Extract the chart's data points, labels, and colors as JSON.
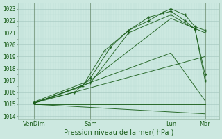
{
  "xlabel": "Pression niveau de la mer( hPa )",
  "ylim": [
    1013.8,
    1023.5
  ],
  "yticks": [
    1014,
    1015,
    1016,
    1017,
    1018,
    1019,
    1020,
    1021,
    1022,
    1023
  ],
  "xtick_labels": [
    "VenDim",
    "Sam",
    "Lun",
    "Mar"
  ],
  "xtick_positions": [
    0.08,
    0.36,
    0.76,
    0.93
  ],
  "xlim": [
    0.0,
    1.0
  ],
  "bg_color": "#cce8e0",
  "grid_major_color": "#aaccc4",
  "grid_minor_color": "#bbddd5",
  "line_color": "#1a5e1a",
  "lines": [
    {
      "x": [
        0.08,
        0.93
      ],
      "y": [
        1015.0,
        1014.2
      ],
      "marker": false
    },
    {
      "x": [
        0.08,
        0.93
      ],
      "y": [
        1015.0,
        1015.0
      ],
      "marker": false
    },
    {
      "x": [
        0.08,
        0.93
      ],
      "y": [
        1015.1,
        1019.0
      ],
      "marker": false
    },
    {
      "x": [
        0.08,
        0.76,
        0.93
      ],
      "y": [
        1015.1,
        1019.3,
        1015.3
      ],
      "marker": false
    },
    {
      "x": [
        0.08,
        0.36,
        0.76,
        0.93
      ],
      "y": [
        1015.2,
        1017.0,
        1022.2,
        1021.0
      ],
      "marker": false
    },
    {
      "x": [
        0.08,
        0.36,
        0.55,
        0.76,
        0.88,
        0.93
      ],
      "y": [
        1015.1,
        1016.8,
        1021.0,
        1022.5,
        1021.3,
        1017.5
      ],
      "marker": true
    },
    {
      "x": [
        0.08,
        0.32,
        0.43,
        0.55,
        0.65,
        0.76,
        0.83,
        0.88,
        0.93
      ],
      "y": [
        1015.1,
        1016.5,
        1019.5,
        1021.2,
        1022.3,
        1022.8,
        1022.0,
        1021.3,
        1017.0
      ],
      "marker": true
    },
    {
      "x": [
        0.08,
        0.28,
        0.36,
        0.46,
        0.55,
        0.65,
        0.72,
        0.76,
        0.83,
        0.88,
        0.93
      ],
      "y": [
        1015.2,
        1016.0,
        1017.2,
        1019.8,
        1021.2,
        1022.0,
        1022.7,
        1023.0,
        1022.5,
        1021.5,
        1021.2
      ],
      "marker": true
    }
  ],
  "n_vlines": 80
}
